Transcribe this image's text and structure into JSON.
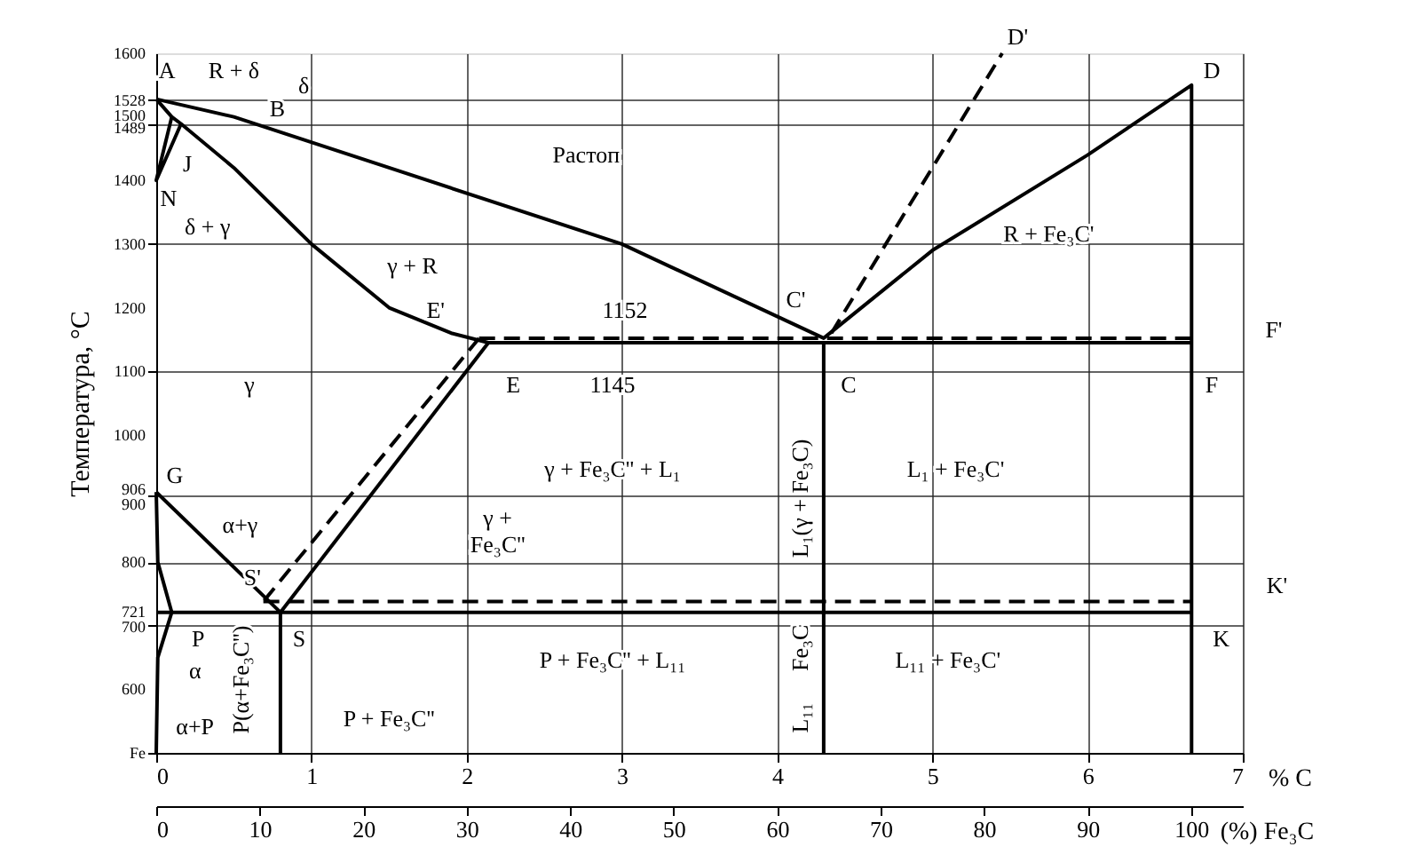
{
  "chart_data": {
    "type": "line",
    "ylabel": "Температура, °C",
    "xlabel": "% C",
    "x2label": "(%) Fe₃C",
    "xlim": [
      0,
      7
    ],
    "xticks": [
      0,
      1,
      2,
      3,
      4,
      5,
      6,
      7
    ],
    "x2lim": [
      0,
      105
    ],
    "x2ticks": [
      0,
      10,
      20,
      30,
      40,
      50,
      60,
      70,
      80,
      90,
      100
    ],
    "ylim": [
      500,
      1600
    ],
    "yticks": [
      1600,
      1528,
      1500,
      1489,
      1400,
      1300,
      1200,
      1100,
      1000,
      906,
      900,
      800,
      721,
      700,
      600,
      {
        "value": 500,
        "label": "Fe"
      }
    ],
    "grid": true,
    "series": [
      {
        "color": "#000000",
        "x": [
          0,
          0.5,
          1.5,
          3,
          4.3,
          5,
          6,
          6.67,
          6.67
        ],
        "values": [
          1528,
          1500,
          1420,
          1300,
          1152,
          1290,
          1440,
          1550,
          500
        ]
      },
      {
        "color": "#000000",
        "line_style": "dashed",
        "x": [
          4.35,
          5.45
        ],
        "values": [
          1160,
          1600
        ]
      },
      {
        "color": "#000000",
        "x": [
          0,
          0.1,
          0.16,
          0.5,
          1,
          1.5,
          1.9,
          2.14,
          6.67
        ],
        "values": [
          1528,
          1500,
          1489,
          1420,
          1300,
          1200,
          1160,
          1145,
          1145
        ]
      },
      {
        "color": "#000000",
        "x": [
          0.1,
          0,
          0.16
        ],
        "values": [
          1500,
          1400,
          1489
        ]
      },
      {
        "color": "#000000",
        "x": [
          2.14,
          0.8
        ],
        "values": [
          1145,
          721
        ]
      },
      {
        "color": "#000000",
        "line_style": "dashed",
        "x": [
          2.08,
          0.69
        ],
        "values": [
          1152,
          738
        ]
      },
      {
        "color": "#000000",
        "line_style": "dashed",
        "x": [
          2.08,
          6.67
        ],
        "values": [
          1152,
          1152
        ]
      },
      {
        "color": "#000000",
        "x": [
          0,
          0.8
        ],
        "values": [
          910,
          721
        ]
      },
      {
        "color": "#000000",
        "x": [
          0,
          0.01,
          0.1
        ],
        "values": [
          910,
          800,
          721
        ]
      },
      {
        "color": "#000000",
        "x": [
          0.1,
          0.01,
          0
        ],
        "values": [
          721,
          650,
          500
        ]
      },
      {
        "color": "#000000",
        "x": [
          0,
          6.67
        ],
        "values": [
          721,
          721
        ]
      },
      {
        "color": "#000000",
        "line_style": "dashed",
        "x": [
          0.69,
          6.67
        ],
        "values": [
          738,
          738
        ]
      },
      {
        "color": "#000000",
        "x": [
          0.8,
          0.8
        ],
        "values": [
          721,
          500
        ]
      },
      {
        "color": "#000000",
        "x": [
          4.3,
          4.3
        ],
        "values": [
          1145,
          500
        ]
      }
    ],
    "annotations": [
      "A",
      "R + δ",
      "δ",
      "B",
      "J",
      "N",
      "δ + γ",
      "Растоп",
      "γ + R",
      "E'",
      "1152",
      "C'",
      "E",
      "1145",
      "C",
      "F",
      "F'",
      "γ",
      "R + Fe₃C'",
      "D",
      "D'",
      "G",
      "α+γ",
      "γ +\nFe₃C''",
      "γ + Fe₃C'' + L₁",
      "L₁ + Fe₃C'",
      "S'",
      "S",
      "P",
      "α",
      "α+P",
      "P + Fe₃C''",
      "P + Fe₃C'' + L₁₁",
      "L₁₁ + Fe₃C'",
      "K",
      "K'",
      "P(α+Fe₃C'')",
      "L₁(γ + Fe₃C)",
      "Fe₃C",
      "L₁₁"
    ]
  }
}
